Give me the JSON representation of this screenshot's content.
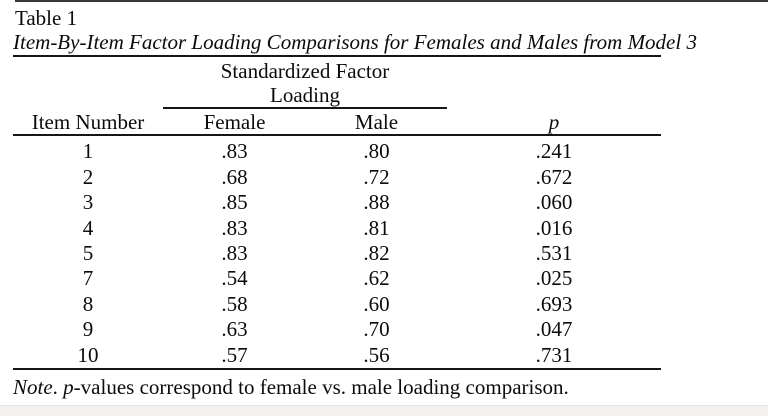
{
  "table_label": "Table 1",
  "title": "Item-By-Item Factor Loading Comparisons for Females and Males from Model 3",
  "spanner": {
    "line1": "Standardized Factor",
    "line2": "Loading"
  },
  "columns": {
    "item": "Item Number",
    "female": "Female",
    "male": "Male",
    "p": "p"
  },
  "rows": [
    {
      "item": "1",
      "female": ".83",
      "male": ".80",
      "p": ".241"
    },
    {
      "item": "2",
      "female": ".68",
      "male": ".72",
      "p": ".672"
    },
    {
      "item": "3",
      "female": ".85",
      "male": ".88",
      "p": ".060"
    },
    {
      "item": "4",
      "female": ".83",
      "male": ".81",
      "p": ".016"
    },
    {
      "item": "5",
      "female": ".83",
      "male": ".82",
      "p": ".531"
    },
    {
      "item": "7",
      "female": ".54",
      "male": ".62",
      "p": ".025"
    },
    {
      "item": "8",
      "female": ".58",
      "male": ".60",
      "p": ".693"
    },
    {
      "item": "9",
      "female": ".63",
      "male": ".70",
      "p": ".047"
    },
    {
      "item": "10",
      "female": ".57",
      "male": ".56",
      "p": ".731"
    }
  ],
  "note": {
    "word_note": "Note",
    "separator": ". ",
    "p_word": "p",
    "rest": "-values correspond to female vs. male loading comparison."
  },
  "colors": {
    "background": "#ffffff",
    "text": "#0b0b0b",
    "rule": "#161616",
    "bottom_band": "#f2f1ef"
  }
}
